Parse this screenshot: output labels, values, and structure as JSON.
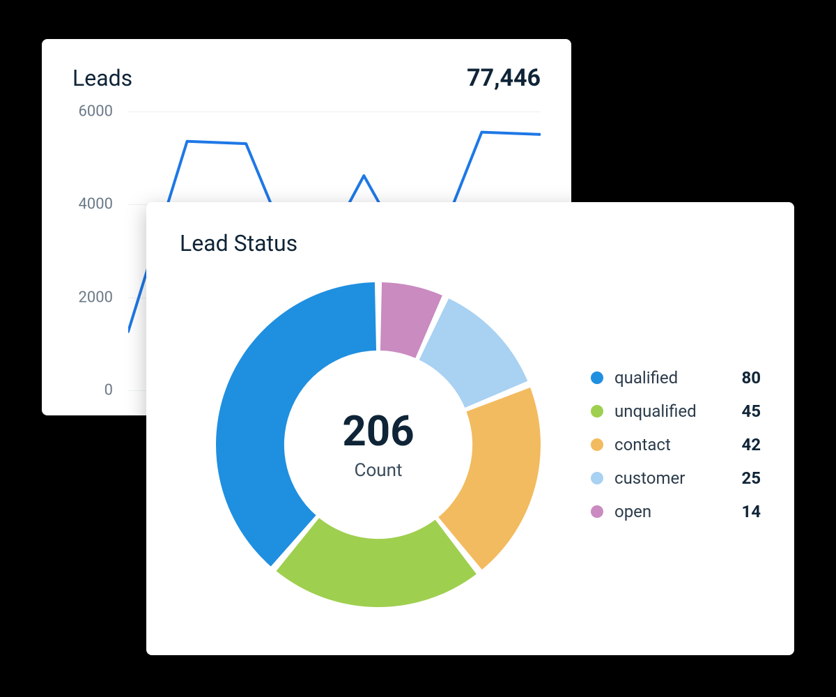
{
  "colors": {
    "page_bg": "#000000",
    "card_bg": "#ffffff",
    "text_primary": "#0f2437",
    "text_secondary": "#6b7a88",
    "grid": "#eceff2"
  },
  "leads_card": {
    "title": "Leads",
    "total": "77,446",
    "chart": {
      "type": "line",
      "line_color": "#1e78e6",
      "line_width": 4,
      "ylim": [
        0,
        6000
      ],
      "yticks": [
        0,
        2000,
        4000,
        6000
      ],
      "x_range": [
        0,
        12
      ],
      "values": [
        1200,
        5350,
        5300,
        2200,
        4600,
        2300,
        5550,
        5500
      ]
    }
  },
  "status_card": {
    "title": "Lead Status",
    "donut": {
      "type": "pie",
      "center_value": "206",
      "center_label": "Count",
      "inner_radius_ratio": 0.58,
      "gap_deg": 2.5,
      "background": "#ffffff",
      "slices": [
        {
          "name": "qualified",
          "value": 80,
          "color": "#1f8fe0"
        },
        {
          "name": "unqualified",
          "value": 45,
          "color": "#9fcf4f"
        },
        {
          "name": "contact",
          "value": 42,
          "color": "#f2bb5f"
        },
        {
          "name": "customer",
          "value": 25,
          "color": "#a8d1f2"
        },
        {
          "name": "open",
          "value": 14,
          "color": "#c98bc0"
        }
      ]
    }
  }
}
